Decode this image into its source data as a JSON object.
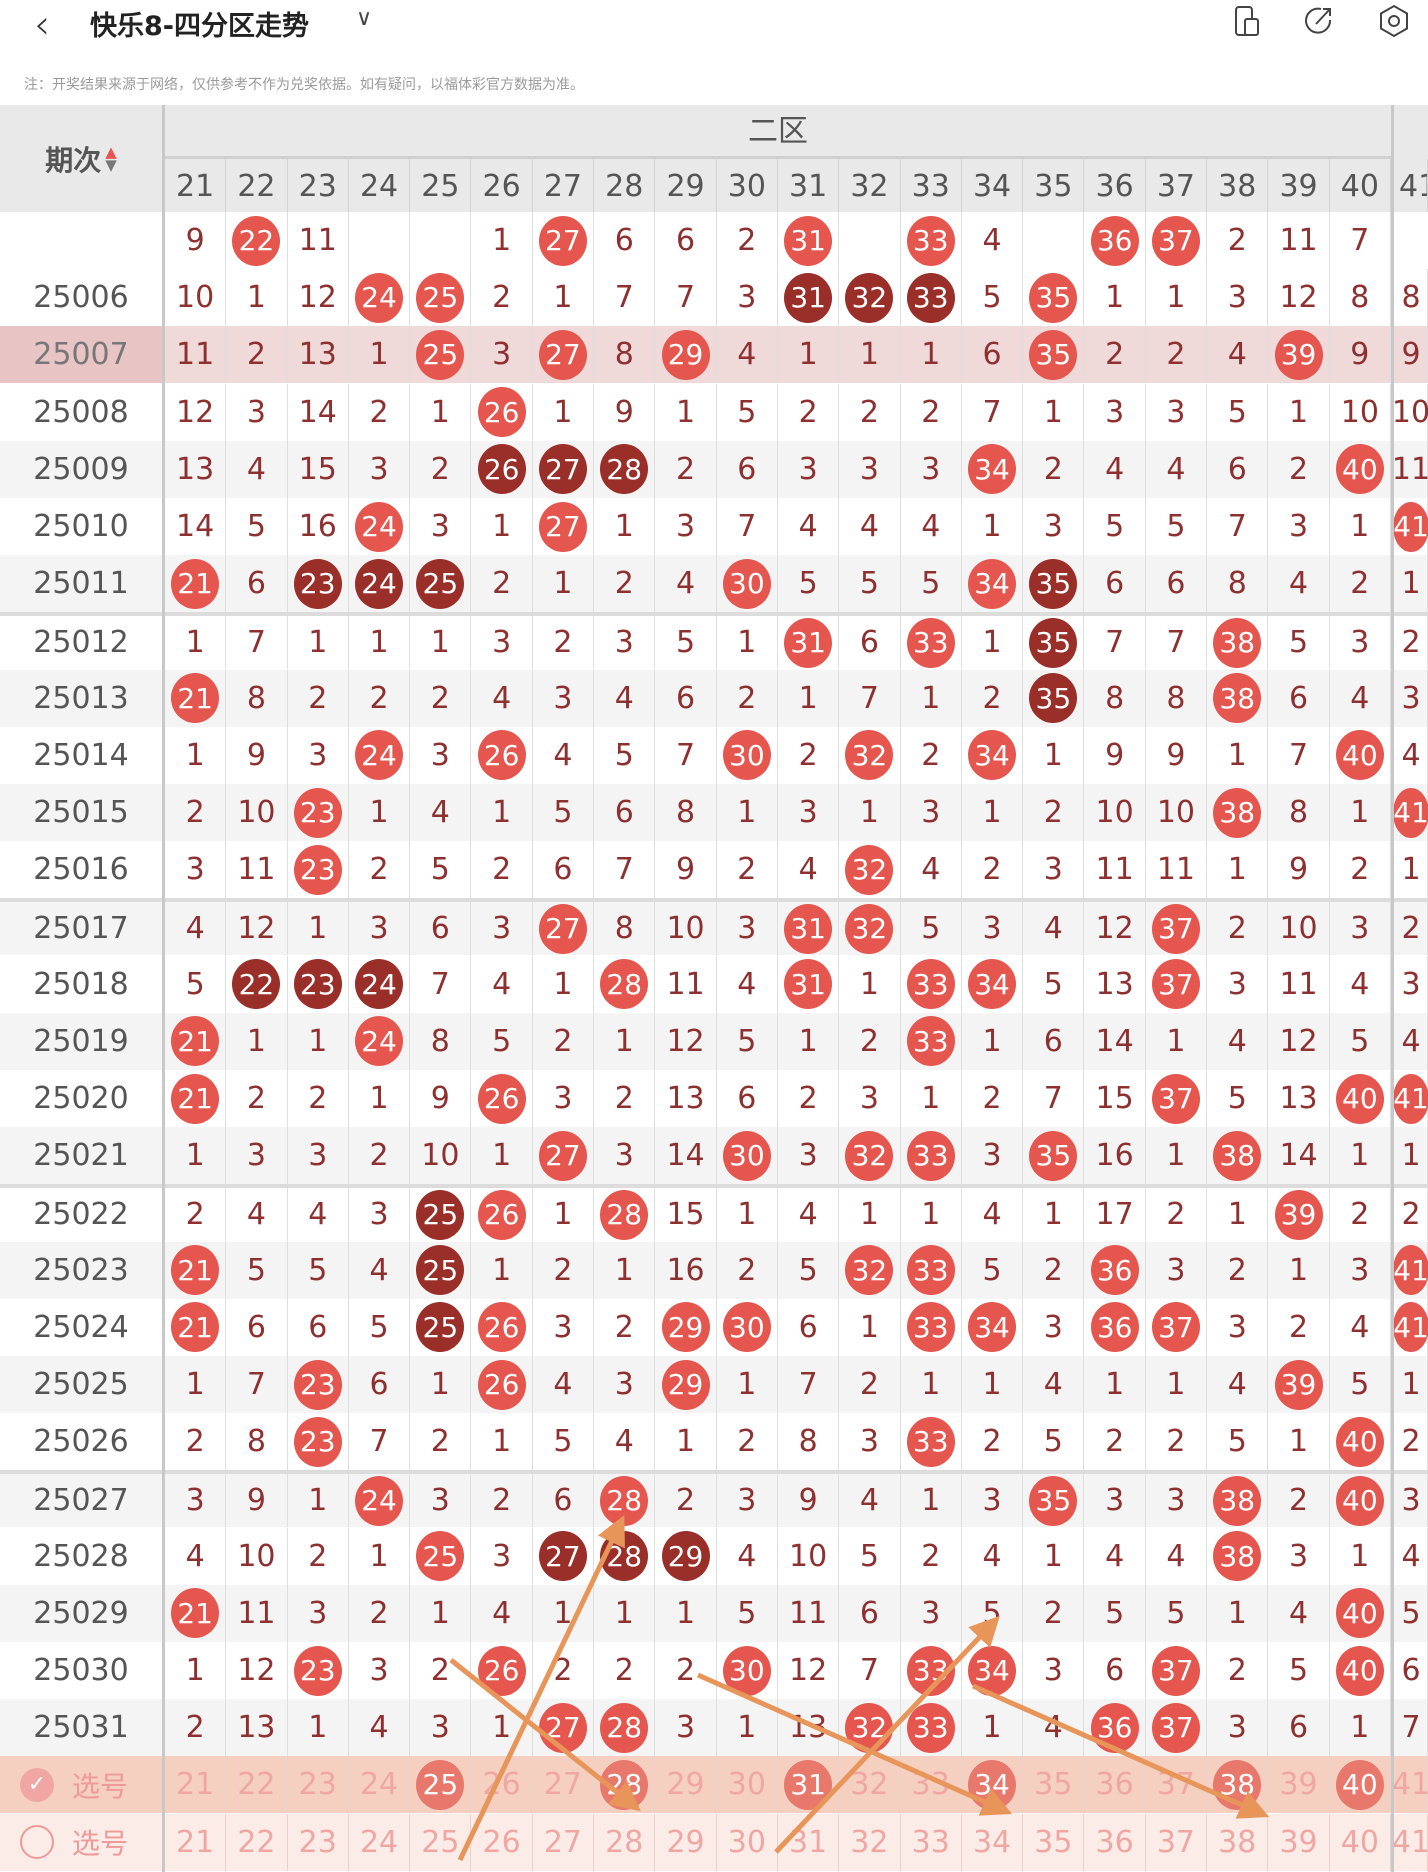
{
  "header": {
    "title": "快乐8-四分区走势",
    "back_icon": "chevron-left-icon",
    "dropdown_icon": "chevron-down-icon",
    "icons": [
      "device-icon",
      "share-icon",
      "settings-icon"
    ]
  },
  "note": "注：开奖结果来源于网络，仅供参考不作为兑奖依据。如有疑问，以福体彩官方数据为准。",
  "table": {
    "period_header": "期次",
    "zone_label": "二区",
    "columns": [
      "21",
      "22",
      "23",
      "24",
      "25",
      "26",
      "27",
      "28",
      "29",
      "30",
      "31",
      "32",
      "33",
      "34",
      "35",
      "36",
      "37",
      "38",
      "39",
      "40"
    ],
    "next_column": "41",
    "colors": {
      "hit": "#e5564e",
      "repeat_hit": "#9a2e29",
      "number": "#8e3030",
      "selected_row": "#f0d9d9",
      "arrow": "#e8955a"
    },
    "partial_top_row": {
      "cells": [
        "9",
        "22",
        "11",
        "",
        "",
        "1",
        "27",
        "6",
        "6",
        "2",
        "31",
        "",
        "33",
        "4",
        "",
        "36",
        "37",
        "2",
        "11",
        "7"
      ],
      "dark": []
    },
    "rows": [
      {
        "period": "25006",
        "cells": [
          "10",
          "1",
          "12",
          "24",
          "25",
          "2",
          "1",
          "7",
          "7",
          "3",
          "31",
          "32",
          "33",
          "5",
          "35",
          "1",
          "1",
          "3",
          "12",
          "8"
        ],
        "dark": [
          "31",
          "32",
          "33"
        ],
        "next": "8"
      },
      {
        "period": "25007",
        "cells": [
          "11",
          "2",
          "13",
          "1",
          "25",
          "3",
          "27",
          "8",
          "29",
          "4",
          "1",
          "1",
          "1",
          "6",
          "35",
          "2",
          "2",
          "4",
          "39",
          "9"
        ],
        "dark": [],
        "next": "9",
        "selected": true
      },
      {
        "period": "25008",
        "cells": [
          "12",
          "3",
          "14",
          "2",
          "1",
          "26",
          "1",
          "9",
          "1",
          "5",
          "2",
          "2",
          "2",
          "7",
          "1",
          "3",
          "3",
          "5",
          "1",
          "10"
        ],
        "dark": [],
        "next": "10"
      },
      {
        "period": "25009",
        "cells": [
          "13",
          "4",
          "15",
          "3",
          "2",
          "26",
          "27",
          "28",
          "2",
          "6",
          "3",
          "3",
          "3",
          "34",
          "2",
          "4",
          "4",
          "6",
          "2",
          "40"
        ],
        "dark": [
          "26",
          "27",
          "28"
        ],
        "next": "11"
      },
      {
        "period": "25010",
        "cells": [
          "14",
          "5",
          "16",
          "24",
          "3",
          "1",
          "27",
          "1",
          "3",
          "7",
          "4",
          "4",
          "4",
          "1",
          "3",
          "5",
          "5",
          "7",
          "3",
          "1"
        ],
        "dark": [],
        "next": "41"
      },
      {
        "period": "25011",
        "cells": [
          "21",
          "6",
          "23",
          "24",
          "25",
          "2",
          "1",
          "2",
          "4",
          "30",
          "5",
          "5",
          "5",
          "34",
          "35",
          "6",
          "6",
          "8",
          "4",
          "2"
        ],
        "dark": [
          "23",
          "24",
          "25",
          "35"
        ],
        "next": "1"
      },
      {
        "period": "25012",
        "cells": [
          "1",
          "7",
          "1",
          "1",
          "1",
          "3",
          "2",
          "3",
          "5",
          "1",
          "31",
          "6",
          "33",
          "1",
          "35",
          "7",
          "7",
          "38",
          "5",
          "3"
        ],
        "dark": [
          "35"
        ],
        "next": "2"
      },
      {
        "period": "25013",
        "cells": [
          "21",
          "8",
          "2",
          "2",
          "2",
          "4",
          "3",
          "4",
          "6",
          "2",
          "1",
          "7",
          "1",
          "2",
          "35",
          "8",
          "8",
          "38",
          "6",
          "4"
        ],
        "dark": [
          "35"
        ],
        "next": "3"
      },
      {
        "period": "25014",
        "cells": [
          "1",
          "9",
          "3",
          "24",
          "3",
          "26",
          "4",
          "5",
          "7",
          "30",
          "2",
          "32",
          "2",
          "34",
          "1",
          "9",
          "9",
          "1",
          "7",
          "40"
        ],
        "dark": [],
        "next": "4"
      },
      {
        "period": "25015",
        "cells": [
          "2",
          "10",
          "23",
          "1",
          "4",
          "1",
          "5",
          "6",
          "8",
          "1",
          "3",
          "1",
          "3",
          "1",
          "2",
          "10",
          "10",
          "38",
          "8",
          "1"
        ],
        "dark": [],
        "next": "41"
      },
      {
        "period": "25016",
        "cells": [
          "3",
          "11",
          "23",
          "2",
          "5",
          "2",
          "6",
          "7",
          "9",
          "2",
          "4",
          "32",
          "4",
          "2",
          "3",
          "11",
          "11",
          "1",
          "9",
          "2"
        ],
        "dark": [],
        "next": "1"
      },
      {
        "period": "25017",
        "cells": [
          "4",
          "12",
          "1",
          "3",
          "6",
          "3",
          "27",
          "8",
          "10",
          "3",
          "31",
          "32",
          "5",
          "3",
          "4",
          "12",
          "37",
          "2",
          "10",
          "3"
        ],
        "dark": [],
        "next": "2"
      },
      {
        "period": "25018",
        "cells": [
          "5",
          "22",
          "23",
          "24",
          "7",
          "4",
          "1",
          "28",
          "11",
          "4",
          "31",
          "1",
          "33",
          "34",
          "5",
          "13",
          "37",
          "3",
          "11",
          "4"
        ],
        "dark": [
          "22",
          "23",
          "24"
        ],
        "next": "3"
      },
      {
        "period": "25019",
        "cells": [
          "21",
          "1",
          "1",
          "24",
          "8",
          "5",
          "2",
          "1",
          "12",
          "5",
          "1",
          "2",
          "33",
          "1",
          "6",
          "14",
          "1",
          "4",
          "12",
          "5"
        ],
        "dark": [],
        "next": "4"
      },
      {
        "period": "25020",
        "cells": [
          "21",
          "2",
          "2",
          "1",
          "9",
          "26",
          "3",
          "2",
          "13",
          "6",
          "2",
          "3",
          "1",
          "2",
          "7",
          "15",
          "37",
          "5",
          "13",
          "40"
        ],
        "dark": [],
        "next": "41"
      },
      {
        "period": "25021",
        "cells": [
          "1",
          "3",
          "3",
          "2",
          "10",
          "1",
          "27",
          "3",
          "14",
          "30",
          "3",
          "32",
          "33",
          "3",
          "35",
          "16",
          "1",
          "38",
          "14",
          "1"
        ],
        "dark": [],
        "next": "1"
      },
      {
        "period": "25022",
        "cells": [
          "2",
          "4",
          "4",
          "3",
          "25",
          "26",
          "1",
          "28",
          "15",
          "1",
          "4",
          "1",
          "1",
          "4",
          "1",
          "17",
          "2",
          "1",
          "39",
          "2"
        ],
        "dark": [
          "25"
        ],
        "next": "2"
      },
      {
        "period": "25023",
        "cells": [
          "21",
          "5",
          "5",
          "4",
          "25",
          "1",
          "2",
          "1",
          "16",
          "2",
          "5",
          "32",
          "33",
          "5",
          "2",
          "36",
          "3",
          "2",
          "1",
          "3"
        ],
        "dark": [
          "25"
        ],
        "next": "41"
      },
      {
        "period": "25024",
        "cells": [
          "21",
          "6",
          "6",
          "5",
          "25",
          "26",
          "3",
          "2",
          "29",
          "30",
          "6",
          "1",
          "33",
          "34",
          "3",
          "36",
          "37",
          "3",
          "2",
          "4"
        ],
        "dark": [
          "25"
        ],
        "next": "41"
      },
      {
        "period": "25025",
        "cells": [
          "1",
          "7",
          "23",
          "6",
          "1",
          "26",
          "4",
          "3",
          "29",
          "1",
          "7",
          "2",
          "1",
          "1",
          "4",
          "1",
          "1",
          "4",
          "39",
          "5"
        ],
        "dark": [],
        "next": "1"
      },
      {
        "period": "25026",
        "cells": [
          "2",
          "8",
          "23",
          "7",
          "2",
          "1",
          "5",
          "4",
          "1",
          "2",
          "8",
          "3",
          "33",
          "2",
          "5",
          "2",
          "2",
          "5",
          "1",
          "40"
        ],
        "dark": [],
        "next": "2"
      },
      {
        "period": "25027",
        "cells": [
          "3",
          "9",
          "1",
          "24",
          "3",
          "2",
          "6",
          "28",
          "2",
          "3",
          "9",
          "4",
          "1",
          "3",
          "35",
          "3",
          "3",
          "38",
          "2",
          "40"
        ],
        "dark": [],
        "next": "3"
      },
      {
        "period": "25028",
        "cells": [
          "4",
          "10",
          "2",
          "1",
          "25",
          "3",
          "27",
          "28",
          "29",
          "4",
          "10",
          "5",
          "2",
          "4",
          "1",
          "4",
          "4",
          "38",
          "3",
          "1"
        ],
        "dark": [
          "27",
          "28",
          "29"
        ],
        "next": "4"
      },
      {
        "period": "25029",
        "cells": [
          "21",
          "11",
          "3",
          "2",
          "1",
          "4",
          "1",
          "1",
          "1",
          "5",
          "11",
          "6",
          "3",
          "5",
          "2",
          "5",
          "5",
          "1",
          "4",
          "40"
        ],
        "dark": [],
        "next": "5"
      },
      {
        "period": "25030",
        "cells": [
          "1",
          "12",
          "23",
          "3",
          "2",
          "26",
          "2",
          "2",
          "2",
          "30",
          "12",
          "7",
          "33",
          "34",
          "3",
          "6",
          "37",
          "2",
          "5",
          "40"
        ],
        "dark": [],
        "next": "6"
      },
      {
        "period": "25031",
        "cells": [
          "2",
          "13",
          "1",
          "4",
          "3",
          "1",
          "27",
          "28",
          "3",
          "1",
          "13",
          "32",
          "33",
          "1",
          "4",
          "36",
          "37",
          "3",
          "6",
          "1"
        ],
        "dark": [],
        "next": "7"
      }
    ],
    "picker_rows": [
      {
        "label": "选号",
        "checked": true,
        "picked": [
          "25",
          "28",
          "31",
          "34",
          "38",
          "40"
        ]
      },
      {
        "label": "选号",
        "checked": false,
        "picked": []
      }
    ]
  }
}
